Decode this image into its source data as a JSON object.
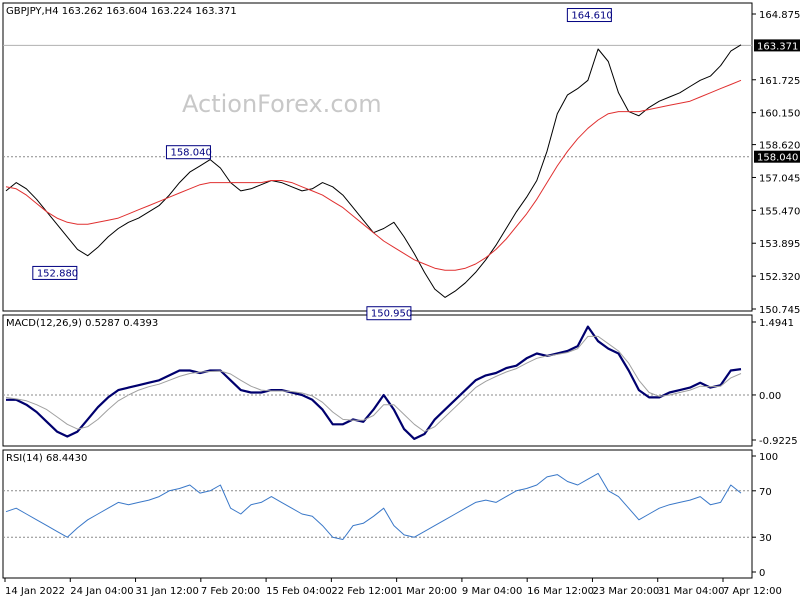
{
  "chart_data": {
    "type": "line",
    "panels": [
      {
        "name": "price",
        "header": "GBPJPY,H4  163.262 163.604 163.224 163.371",
        "ylim": [
          150.745,
          164.875
        ],
        "yticks": [
          "164.875",
          "163.371",
          "161.725",
          "160.150",
          "158.620",
          "158.040",
          "157.045",
          "155.470",
          "153.895",
          "152.320",
          "150.745"
        ],
        "current_price": "163.371",
        "level_line": "158.040",
        "annotations": [
          {
            "label": "164.610",
            "value": 164.61,
            "x": "23 Mar 20:00"
          },
          {
            "label": "158.040",
            "value": 158.04,
            "x": "7 Feb 20:00"
          },
          {
            "label": "152.880",
            "value": 152.88,
            "x": "24 Jan 04:00"
          },
          {
            "label": "150.950",
            "value": 150.95,
            "x": "1 Mar 20:00"
          }
        ],
        "series": [
          {
            "name": "close",
            "values": [
              156.4,
              156.8,
              156.5,
              156.0,
              155.4,
              154.8,
              154.2,
              153.6,
              153.3,
              153.7,
              154.2,
              154.6,
              154.9,
              155.1,
              155.4,
              155.7,
              156.2,
              156.8,
              157.3,
              157.6,
              157.9,
              157.5,
              156.8,
              156.4,
              156.5,
              156.7,
              156.9,
              156.8,
              156.6,
              156.4,
              156.5,
              156.8,
              156.6,
              156.2,
              155.6,
              155.0,
              154.4,
              154.6,
              154.9,
              154.2,
              153.4,
              152.5,
              151.7,
              151.3,
              151.6,
              152.0,
              152.5,
              153.1,
              153.8,
              154.6,
              155.4,
              156.1,
              156.9,
              158.3,
              160.1,
              161.0,
              161.3,
              161.7,
              163.2,
              162.6,
              161.1,
              160.2,
              160.0,
              160.4,
              160.7,
              160.9,
              161.1,
              161.4,
              161.7,
              161.9,
              162.4,
              163.1,
              163.4
            ]
          },
          {
            "name": "moving average",
            "values": [
              156.6,
              156.5,
              156.2,
              155.8,
              155.4,
              155.1,
              154.9,
              154.8,
              154.8,
              154.9,
              155.0,
              155.1,
              155.3,
              155.5,
              155.7,
              155.9,
              156.1,
              156.3,
              156.5,
              156.7,
              156.8,
              156.8,
              156.8,
              156.8,
              156.8,
              156.8,
              156.9,
              156.9,
              156.8,
              156.6,
              156.4,
              156.2,
              155.9,
              155.6,
              155.2,
              154.8,
              154.4,
              154.0,
              153.7,
              153.4,
              153.1,
              152.9,
              152.7,
              152.6,
              152.6,
              152.7,
              152.9,
              153.2,
              153.6,
              154.1,
              154.7,
              155.3,
              156.0,
              156.8,
              157.6,
              158.3,
              158.9,
              159.4,
              159.8,
              160.1,
              160.2,
              160.2,
              160.2,
              160.3,
              160.4,
              160.5,
              160.6,
              160.7,
              160.9,
              161.1,
              161.3,
              161.5,
              161.7
            ]
          }
        ]
      },
      {
        "name": "macd",
        "header": "MACD(12,26,9) 0.5287 0.4393",
        "ylim": [
          -0.9225,
          1.4941
        ],
        "yticks": [
          "1.4941",
          "0.00",
          "-0.9225"
        ],
        "series": [
          {
            "name": "macd",
            "values": [
              -0.1,
              -0.1,
              -0.2,
              -0.35,
              -0.55,
              -0.75,
              -0.85,
              -0.75,
              -0.5,
              -0.25,
              -0.05,
              0.1,
              0.15,
              0.2,
              0.25,
              0.3,
              0.4,
              0.5,
              0.5,
              0.45,
              0.5,
              0.5,
              0.3,
              0.1,
              0.05,
              0.05,
              0.1,
              0.1,
              0.05,
              0.0,
              -0.1,
              -0.3,
              -0.6,
              -0.6,
              -0.5,
              -0.55,
              -0.3,
              0.0,
              -0.3,
              -0.7,
              -0.9,
              -0.8,
              -0.5,
              -0.3,
              -0.1,
              0.1,
              0.3,
              0.4,
              0.45,
              0.55,
              0.6,
              0.75,
              0.85,
              0.8,
              0.85,
              0.9,
              1.0,
              1.4,
              1.1,
              0.95,
              0.85,
              0.5,
              0.1,
              -0.05,
              -0.05,
              0.05,
              0.1,
              0.15,
              0.25,
              0.15,
              0.2,
              0.5,
              0.53
            ]
          },
          {
            "name": "signal",
            "values": [
              -0.05,
              -0.08,
              -0.12,
              -0.2,
              -0.3,
              -0.45,
              -0.6,
              -0.7,
              -0.65,
              -0.5,
              -0.3,
              -0.12,
              0.0,
              0.1,
              0.17,
              0.22,
              0.3,
              0.38,
              0.44,
              0.47,
              0.48,
              0.49,
              0.43,
              0.3,
              0.18,
              0.1,
              0.08,
              0.08,
              0.07,
              0.04,
              -0.02,
              -0.15,
              -0.35,
              -0.5,
              -0.52,
              -0.52,
              -0.42,
              -0.2,
              -0.2,
              -0.4,
              -0.6,
              -0.75,
              -0.65,
              -0.45,
              -0.25,
              -0.05,
              0.15,
              0.28,
              0.38,
              0.47,
              0.54,
              0.65,
              0.75,
              0.8,
              0.83,
              0.87,
              0.95,
              1.2,
              1.2,
              1.05,
              0.9,
              0.65,
              0.3,
              0.05,
              -0.03,
              0.0,
              0.05,
              0.1,
              0.18,
              0.17,
              0.18,
              0.35,
              0.44
            ]
          }
        ]
      },
      {
        "name": "rsi",
        "header": "RSI(14) 68.4430",
        "ylim": [
          0,
          100
        ],
        "yticks": [
          "100",
          "70",
          "30",
          "0"
        ],
        "levels": [
          70,
          30
        ],
        "series": [
          {
            "name": "rsi",
            "values": [
              52,
              55,
              50,
              45,
              40,
              35,
              30,
              38,
              45,
              50,
              55,
              60,
              58,
              60,
              62,
              65,
              70,
              72,
              75,
              68,
              70,
              75,
              55,
              50,
              58,
              60,
              65,
              60,
              55,
              50,
              48,
              40,
              30,
              28,
              40,
              42,
              48,
              55,
              40,
              32,
              30,
              35,
              40,
              45,
              50,
              55,
              60,
              62,
              60,
              65,
              70,
              72,
              75,
              82,
              84,
              78,
              75,
              80,
              85,
              70,
              65,
              55,
              45,
              50,
              55,
              58,
              60,
              62,
              65,
              58,
              60,
              75,
              68
            ]
          }
        ]
      }
    ],
    "x_labels": [
      "14 Jan 2022",
      "24 Jan 04:00",
      "31 Jan 12:00",
      "7 Feb 20:00",
      "15 Feb 04:00",
      "22 Feb 12:00",
      "1 Mar 20:00",
      "9 Mar 04:00",
      "16 Mar 12:00",
      "23 Mar 20:00",
      "31 Mar 04:00",
      "7 Apr 12:00"
    ],
    "watermark": "ActionForex.com",
    "colors": {
      "price": "#000000",
      "moving_average": "#e03030",
      "macd": "#00006e",
      "signal": "#a0a0a0",
      "rsi": "#3a78c8",
      "label_border": "#000080",
      "grid": "#8a8a8a"
    }
  }
}
